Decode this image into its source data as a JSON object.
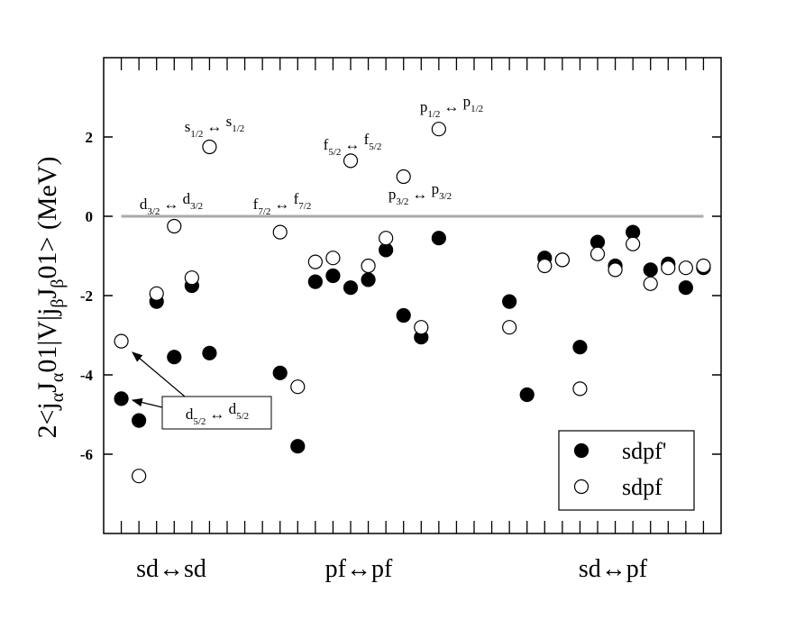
{
  "chart_data": {
    "type": "scatter",
    "y_label": [
      {
        "text": "2<j"
      },
      {
        "text": "α",
        "sub": true
      },
      {
        "text": "J"
      },
      {
        "text": "α",
        "sub": true
      },
      {
        "text": "01|V|j"
      },
      {
        "text": "β",
        "sub": true
      },
      {
        "text": "J"
      },
      {
        "text": "β",
        "sub": true
      },
      {
        "text": "01> (MeV)"
      }
    ],
    "x": [
      0,
      1,
      2,
      3,
      4,
      5,
      9,
      10,
      11,
      12,
      13,
      14,
      15,
      16,
      17,
      18,
      22,
      23,
      24,
      25,
      26,
      27,
      28,
      29,
      30,
      31,
      32,
      33
    ],
    "series": [
      {
        "name": "sdpf'",
        "marker": "filled",
        "color": "#000",
        "values": [
          -4.6,
          -5.15,
          -2.15,
          -3.55,
          -1.75,
          -3.45,
          -3.95,
          -5.8,
          -1.65,
          -1.5,
          -1.8,
          -1.6,
          -0.85,
          -2.5,
          -3.05,
          -0.55,
          -2.15,
          -4.5,
          -1.05,
          -1.1,
          -3.3,
          -0.65,
          -1.25,
          -0.4,
          -1.35,
          -1.2,
          -1.8,
          -1.3
        ]
      },
      {
        "name": "sdpf",
        "marker": "open",
        "color": "#000",
        "values": [
          -3.15,
          -6.55,
          -1.95,
          -0.25,
          -1.55,
          1.75,
          -0.4,
          -4.3,
          -1.15,
          -1.05,
          1.4,
          -1.25,
          -0.55,
          1.0,
          -2.8,
          2.2,
          -2.8,
          null,
          -1.25,
          -1.1,
          -4.35,
          -0.95,
          -1.35,
          -0.7,
          -1.7,
          -1.3,
          -1.3,
          -1.25
        ]
      }
    ],
    "xlim": [
      -1,
      34
    ],
    "ylim": [
      -8,
      4
    ],
    "xticks": [
      0,
      1,
      2,
      3,
      4,
      5,
      6,
      7,
      8,
      9,
      10,
      11,
      12,
      13,
      14,
      15,
      16,
      17,
      18,
      19,
      20,
      21,
      22,
      23,
      24,
      25,
      26,
      27,
      28,
      29,
      30,
      31,
      32,
      33
    ],
    "yticks": [
      -6,
      -4,
      -2,
      0,
      2
    ],
    "reference_line": {
      "value": 0,
      "color": "#aaaaaa"
    },
    "x_groups": [
      "sd↔sd",
      "pf↔pf",
      "sd↔pf"
    ],
    "annotations": [
      {
        "left": {
          "base": "d",
          "sub": "3/2"
        },
        "arrow": "↔",
        "right": {
          "base": "d",
          "sub": "3/2"
        }
      },
      {
        "left": {
          "base": "s",
          "sub": "1/2"
        },
        "arrow": "↔",
        "right": {
          "base": "s",
          "sub": "1/2"
        }
      },
      {
        "left": {
          "base": "f",
          "sub": "7/2"
        },
        "arrow": "↔",
        "right": {
          "base": "f",
          "sub": "7/2"
        }
      },
      {
        "left": {
          "base": "f",
          "sub": "5/2"
        },
        "arrow": "↔",
        "right": {
          "base": "f",
          "sub": "5/2"
        }
      },
      {
        "left": {
          "base": "p",
          "sub": "1/2"
        },
        "arrow": "↔",
        "right": {
          "base": "p",
          "sub": "1/2"
        }
      },
      {
        "left": {
          "base": "p",
          "sub": "3/2"
        },
        "arrow": "↔",
        "right": {
          "base": "p",
          "sub": "3/2"
        }
      },
      {
        "left": {
          "base": "d",
          "sub": "5/2"
        },
        "arrow": "↔",
        "right": {
          "base": "d",
          "sub": "5/2"
        }
      }
    ],
    "legend": "lower right"
  }
}
